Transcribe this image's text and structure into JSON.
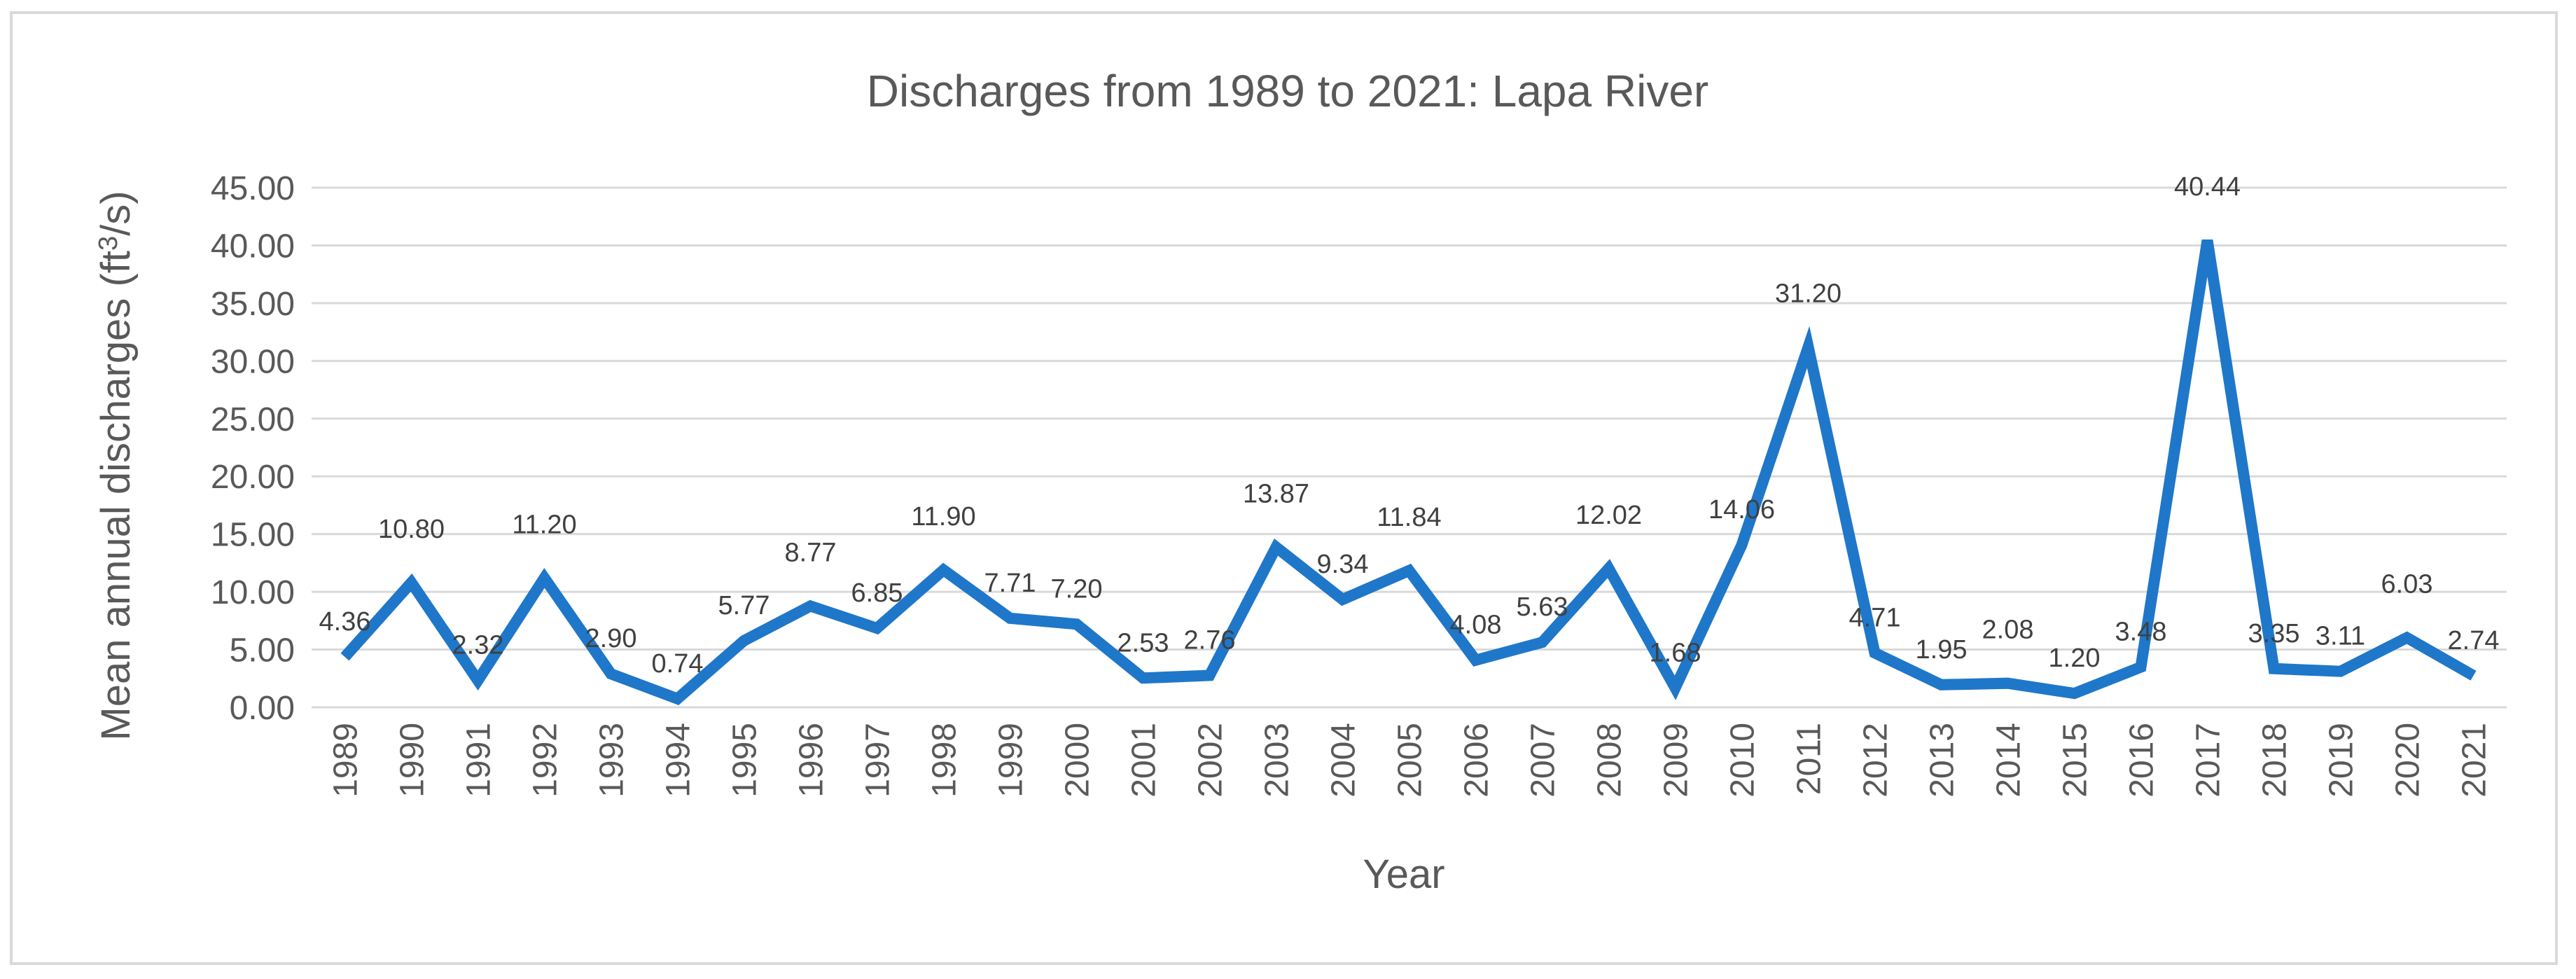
{
  "chart_data": {
    "type": "line",
    "title": "Discharges from 1989 to 2021: Lapa River",
    "xlabel": "Year",
    "ylabel_main": "Mean annual discharges (ft",
    "ylabel_sup": "3",
    "ylabel_tail": "/s)",
    "ylim": [
      0,
      45
    ],
    "ytick_step": 5,
    "yticks": [
      "0.00",
      "5.00",
      "10.00",
      "15.00",
      "20.00",
      "25.00",
      "30.00",
      "35.00",
      "40.00",
      "45.00"
    ],
    "grid": true,
    "line_color": "#1f77c9",
    "categories": [
      "1989",
      "1990",
      "1991",
      "1992",
      "1993",
      "1994",
      "1995",
      "1996",
      "1997",
      "1998",
      "1999",
      "2000",
      "2001",
      "2002",
      "2003",
      "2004",
      "2005",
      "2006",
      "2007",
      "2008",
      "2009",
      "2010",
      "2011",
      "2012",
      "2013",
      "2014",
      "2015",
      "2016",
      "2017",
      "2018",
      "2019",
      "2020",
      "2021"
    ],
    "series": [
      {
        "name": "Mean annual discharge",
        "values": [
          4.36,
          10.8,
          2.32,
          11.2,
          2.9,
          0.74,
          5.77,
          8.77,
          6.85,
          11.9,
          7.71,
          7.2,
          2.53,
          2.76,
          13.87,
          9.34,
          11.84,
          4.08,
          5.63,
          12.02,
          1.68,
          14.06,
          31.2,
          4.71,
          1.95,
          2.08,
          1.2,
          3.48,
          40.44,
          3.35,
          3.11,
          6.03,
          2.74
        ],
        "labels": [
          "4.36",
          "10.80",
          "2.32",
          "11.20",
          "2.90",
          "0.74",
          "5.77",
          "8.77",
          "6.85",
          "11.90",
          "7.71",
          "7.20",
          "2.53",
          "2.76",
          "13.87",
          "9.34",
          "11.84",
          "4.08",
          "5.63",
          "12.02",
          "1.68",
          "14.06",
          "31.20",
          "4.71",
          "1.95",
          "2.08",
          "1.20",
          "3.48",
          "40.44",
          "3.35",
          "3.11",
          "6.03",
          "2.74"
        ]
      }
    ]
  }
}
